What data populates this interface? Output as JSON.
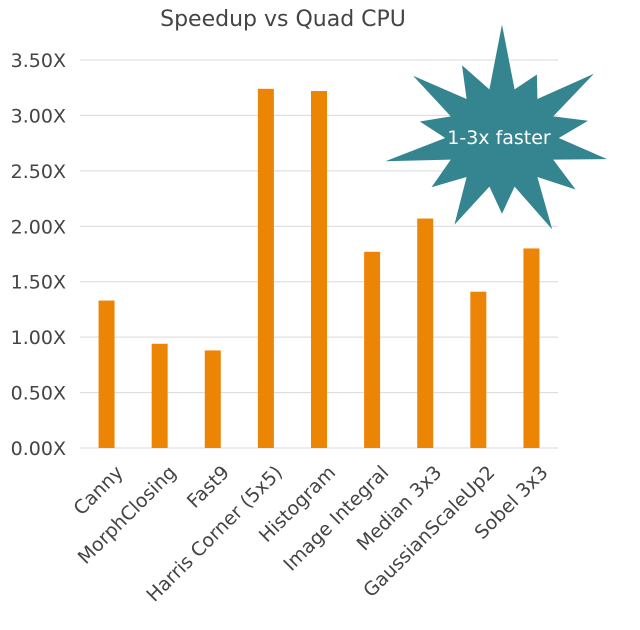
{
  "chart_data": {
    "type": "bar",
    "title": "Speedup vs Quad CPU",
    "categories": [
      "Canny",
      "MorphClosing",
      "Fast9",
      "Harris Corner (5x5)",
      "Histogram",
      "Image Integral",
      "Median 3x3",
      "GaussianScaleUp2",
      "Sobel 3x3"
    ],
    "values": [
      1.33,
      0.94,
      0.88,
      3.24,
      3.22,
      1.77,
      2.07,
      1.41,
      1.8
    ],
    "ylim": [
      0,
      3.5
    ],
    "yticks": [
      0,
      0.5,
      1.0,
      1.5,
      2.0,
      2.5,
      3.0,
      3.5
    ],
    "ytick_labels": [
      "0.00X",
      "0.50X",
      "1.00X",
      "1.50X",
      "2.00X",
      "2.50X",
      "3.00X",
      "3.50X"
    ],
    "xlabel": "",
    "ylabel": "",
    "grid": true,
    "legend": "none",
    "bar_color": "#ec8406",
    "annotation": {
      "shape": "starburst",
      "text": "1-3x faster",
      "color": "#358590",
      "text_color": "#ffffff"
    }
  }
}
